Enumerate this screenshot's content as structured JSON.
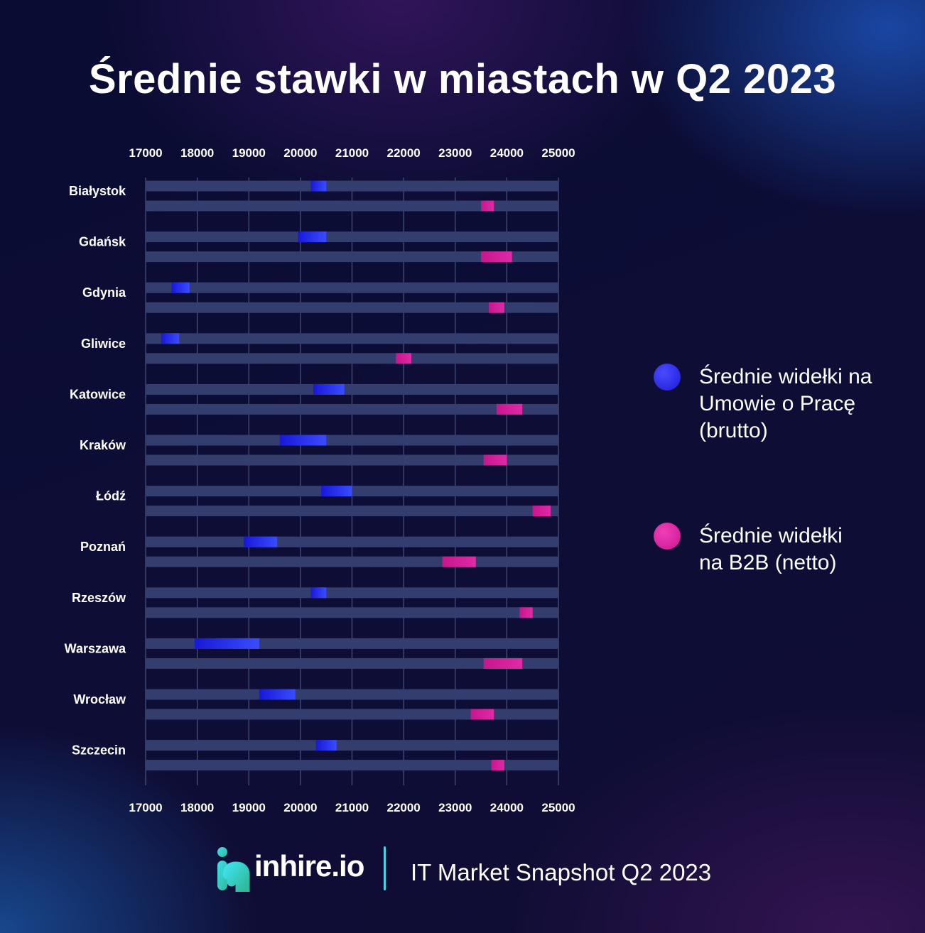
{
  "chart_data": {
    "type": "bar",
    "title": "Średnie stawki w miastach w Q2 2023",
    "xlim": [
      17000,
      25000
    ],
    "x_ticks": [
      "17000",
      "18000",
      "19000",
      "20000",
      "21000",
      "22000",
      "23000",
      "24000",
      "25000"
    ],
    "categories": [
      "Białystok",
      "Gdańsk",
      "Gdynia",
      "Gliwice",
      "Katowice",
      "Kraków",
      "Łódź",
      "Poznań",
      "Rzeszów",
      "Warszawa",
      "Wrocław",
      "Szczecin"
    ],
    "series": [
      {
        "name": "Średnie widełki na Umowie o Pracę (brutto)",
        "color": "#2a2af0",
        "ranges": [
          [
            20200,
            20500
          ],
          [
            19950,
            20500
          ],
          [
            17500,
            17850
          ],
          [
            17300,
            17650
          ],
          [
            20250,
            20850
          ],
          [
            19600,
            20500
          ],
          [
            20400,
            21000
          ],
          [
            18900,
            19550
          ],
          [
            20200,
            20500
          ],
          [
            17950,
            19200
          ],
          [
            19200,
            19900
          ],
          [
            20300,
            20700
          ]
        ]
      },
      {
        "name": "Średnie widełki na B2B (netto)",
        "color": "#d81f9e",
        "ranges": [
          [
            23500,
            23750
          ],
          [
            23500,
            24100
          ],
          [
            23650,
            23950
          ],
          [
            21850,
            22150
          ],
          [
            23800,
            24300
          ],
          [
            23550,
            24000
          ],
          [
            24500,
            24850
          ],
          [
            22750,
            23400
          ],
          [
            24250,
            24500
          ],
          [
            23550,
            24300
          ],
          [
            23300,
            23750
          ],
          [
            23700,
            23950
          ]
        ]
      }
    ],
    "grid": true,
    "legend_position": "right"
  },
  "legend": {
    "uop": "Średnie widełki na Umowie o Pracę (brutto)",
    "b2b": "Średnie widełki na B2B (netto)"
  },
  "footer": {
    "logo_text": "inhire.io",
    "caption": "IT Market Snapshot Q2 2023"
  },
  "colors": {
    "track": "#333e6e",
    "uop": "#2a2af0",
    "b2b": "#d81f9e",
    "accent": "#44d6e6"
  }
}
